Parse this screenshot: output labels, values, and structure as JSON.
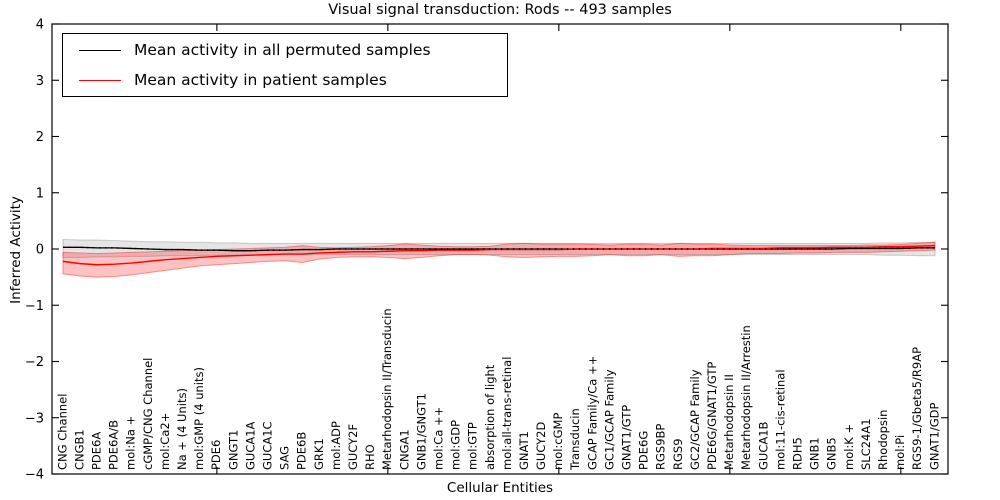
{
  "figure": {
    "title": "Visual signal transduction: Rods -- 493 samples",
    "xlabel": "Cellular Entities",
    "ylabel": "Inferred Activity",
    "background": "#ffffff"
  },
  "legend": {
    "position": "upper left",
    "entries": [
      {
        "label": "Mean activity in all permuted samples",
        "color": "#000000"
      },
      {
        "label": "Mean activity in patient samples",
        "color": "#ff0000"
      }
    ]
  },
  "chart_data": {
    "type": "line",
    "title": "Visual signal transduction: Rods -- 493 samples",
    "xlabel": "Cellular Entities",
    "ylabel": "Inferred Activity",
    "ylim": [
      -4,
      4
    ],
    "yticks": [
      4,
      3,
      2,
      1,
      0,
      -1,
      -2,
      -3,
      -4
    ],
    "xtick_positions": [
      10,
      20,
      30,
      40,
      50
    ],
    "grid": false,
    "legend_position": "upper left",
    "categories": [
      "CNG Channel",
      "CNGB1",
      "PDE6A",
      "PDE6A/B",
      "mol:Na +",
      "cGMP/CNG Channel",
      "mol:Ca2+",
      "Na + (4 Units)",
      "mol:GMP (4 units)",
      "PDE6",
      "GNGT1",
      "GUCA1A",
      "GUCA1C",
      "SAG",
      "PDE6B",
      "GRK1",
      "mol:ADP",
      "GUCY2F",
      "RHO",
      "Metarhodopsin II/Transducin",
      "CNGA1",
      "GNB1/GNGT1",
      "mol:Ca ++",
      "mol:GDP",
      "mol:GTP",
      "absorption of light",
      "mol:all-trans-retinal",
      "GNAT1",
      "GUCY2D",
      "mol:cGMP",
      "Transducin",
      "GCAP Family/Ca ++",
      "GC1/GCAP Family",
      "GNAT1/GTP",
      "PDE6G",
      "RGS9BP",
      "RGS9",
      "GC2/GCAP Family",
      "PDE6G/GNAT1/GTP",
      "Metarhodopsin II",
      "Metarhodopsin II/Arrestin",
      "GUCA1B",
      "mol:11-cis-retinal",
      "RDH5",
      "GNB1",
      "GNB5",
      "mol:K +",
      "SLC24A1",
      "Rhodopsin",
      "mol:Pi",
      "RGS9-1/Gbeta5/R9AP",
      "GNAT1/GDP"
    ],
    "series": [
      {
        "name": "Mean activity in all permuted samples",
        "color": "#000000",
        "style": "solid-with-dotted-overlay",
        "values": [
          0.03,
          0.03,
          0.02,
          0.02,
          0.01,
          0.0,
          -0.01,
          -0.01,
          -0.02,
          -0.02,
          -0.03,
          -0.03,
          -0.02,
          -0.02,
          -0.01,
          -0.01,
          0.0,
          0.0,
          0.0,
          0.0,
          0.0,
          0.0,
          0.0,
          0.0,
          0.0,
          0.0,
          0.0,
          0.0,
          0.0,
          0.0,
          0.0,
          0.0,
          0.0,
          0.0,
          0.0,
          0.0,
          0.0,
          0.0,
          0.0,
          0.0,
          0.0,
          0.0,
          0.0,
          0.0,
          0.0,
          0.0,
          0.01,
          0.01,
          0.01,
          0.01,
          0.02,
          0.02
        ]
      },
      {
        "name": "Mean activity in patient samples",
        "color": "#ff0000",
        "style": "solid",
        "values": [
          -0.22,
          -0.26,
          -0.28,
          -0.27,
          -0.25,
          -0.22,
          -0.19,
          -0.17,
          -0.15,
          -0.13,
          -0.12,
          -0.11,
          -0.1,
          -0.09,
          -0.09,
          -0.07,
          -0.06,
          -0.05,
          -0.05,
          -0.04,
          -0.03,
          -0.03,
          -0.02,
          -0.02,
          -0.02,
          -0.01,
          -0.01,
          -0.01,
          -0.01,
          -0.01,
          0.0,
          0.0,
          0.0,
          0.0,
          0.0,
          0.0,
          0.0,
          0.0,
          0.01,
          0.01,
          0.01,
          0.01,
          0.02,
          0.02,
          0.02,
          0.03,
          0.03,
          0.03,
          0.04,
          0.04,
          0.05,
          0.06
        ]
      }
    ],
    "bands": [
      {
        "name": "permuted-samples-range",
        "fill": "rgba(0,0,0,0.10)",
        "edge": "rgba(0,0,0,0.18)",
        "upper": [
          0.17,
          0.16,
          0.16,
          0.15,
          0.14,
          0.13,
          0.13,
          0.12,
          0.12,
          0.11,
          0.11,
          0.1,
          0.1,
          0.1,
          0.1,
          0.1,
          0.1,
          0.1,
          0.1,
          0.1,
          0.1,
          0.1,
          0.1,
          0.1,
          0.1,
          0.1,
          0.1,
          0.1,
          0.1,
          0.1,
          0.1,
          0.1,
          0.1,
          0.1,
          0.1,
          0.1,
          0.1,
          0.1,
          0.1,
          0.1,
          0.1,
          0.1,
          0.1,
          0.1,
          0.1,
          0.1,
          0.1,
          0.1,
          0.11,
          0.11,
          0.12,
          0.12
        ],
        "lower": [
          -0.15,
          -0.15,
          -0.14,
          -0.14,
          -0.13,
          -0.13,
          -0.12,
          -0.12,
          -0.12,
          -0.11,
          -0.11,
          -0.11,
          -0.1,
          -0.1,
          -0.1,
          -0.1,
          -0.1,
          -0.1,
          -0.1,
          -0.1,
          -0.1,
          -0.1,
          -0.1,
          -0.1,
          -0.1,
          -0.1,
          -0.1,
          -0.1,
          -0.1,
          -0.1,
          -0.1,
          -0.1,
          -0.1,
          -0.1,
          -0.1,
          -0.1,
          -0.1,
          -0.1,
          -0.1,
          -0.1,
          -0.1,
          -0.1,
          -0.1,
          -0.1,
          -0.1,
          -0.1,
          -0.1,
          -0.1,
          -0.11,
          -0.11,
          -0.12,
          -0.12
        ]
      },
      {
        "name": "patient-samples-range",
        "fill": "rgba(255,0,0,0.24)",
        "edge": "rgba(255,0,0,0.40)",
        "upper": [
          -0.06,
          -0.07,
          -0.08,
          -0.07,
          -0.06,
          -0.05,
          -0.04,
          -0.03,
          -0.02,
          -0.01,
          0.0,
          0.01,
          0.02,
          0.03,
          0.06,
          0.03,
          0.02,
          0.03,
          0.04,
          0.06,
          0.09,
          0.07,
          0.05,
          0.04,
          0.04,
          0.05,
          0.09,
          0.1,
          0.09,
          0.09,
          0.09,
          0.08,
          0.07,
          0.09,
          0.09,
          0.07,
          0.1,
          0.09,
          0.09,
          0.07,
          0.06,
          0.06,
          0.06,
          0.06,
          0.06,
          0.06,
          0.06,
          0.07,
          0.07,
          0.08,
          0.1,
          0.12
        ],
        "lower": [
          -0.44,
          -0.48,
          -0.5,
          -0.49,
          -0.46,
          -0.42,
          -0.38,
          -0.34,
          -0.3,
          -0.28,
          -0.26,
          -0.24,
          -0.22,
          -0.21,
          -0.24,
          -0.18,
          -0.15,
          -0.14,
          -0.14,
          -0.15,
          -0.17,
          -0.15,
          -0.12,
          -0.1,
          -0.1,
          -0.11,
          -0.14,
          -0.15,
          -0.14,
          -0.13,
          -0.13,
          -0.12,
          -0.1,
          -0.12,
          -0.12,
          -0.1,
          -0.13,
          -0.12,
          -0.12,
          -0.1,
          -0.08,
          -0.08,
          -0.08,
          -0.07,
          -0.07,
          -0.06,
          -0.06,
          -0.06,
          -0.05,
          -0.04,
          -0.03,
          -0.02
        ]
      }
    ]
  }
}
